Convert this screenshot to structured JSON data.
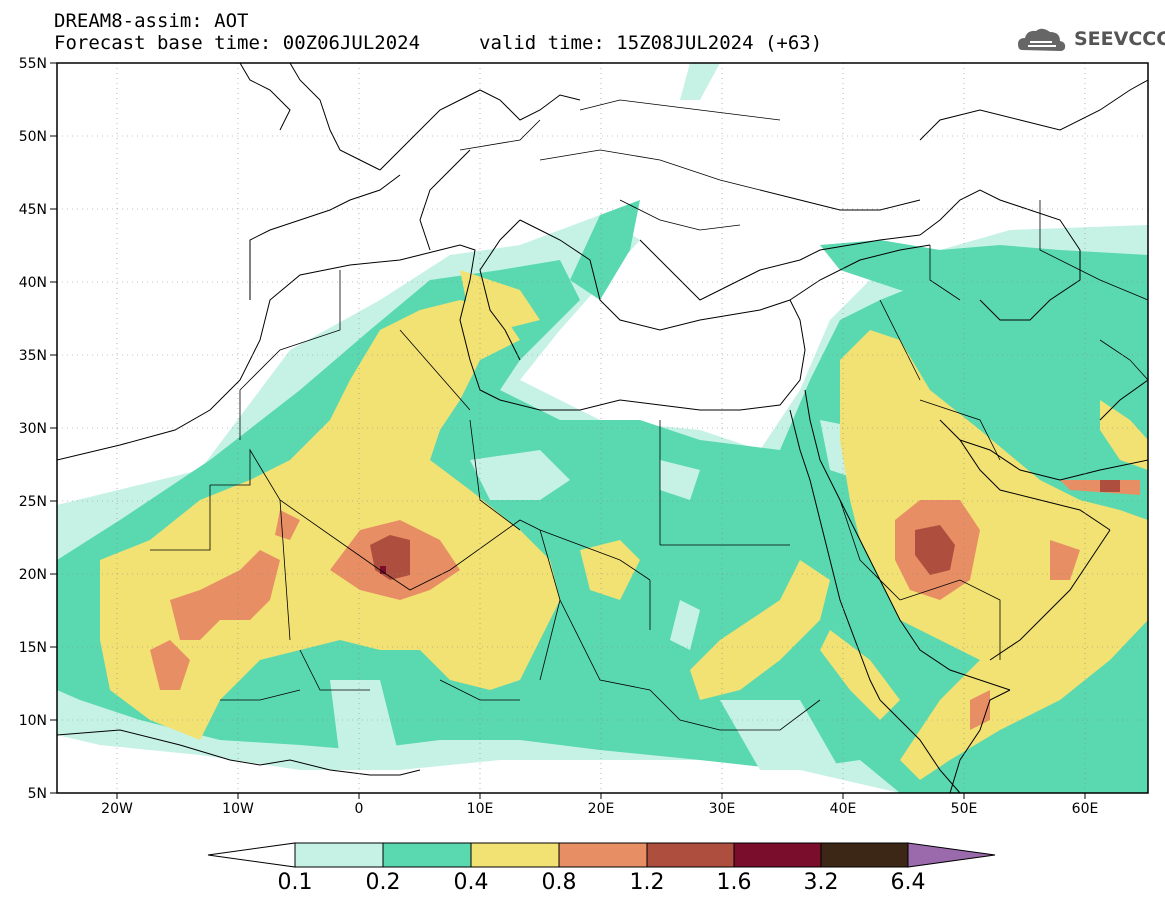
{
  "header": {
    "line1": "DREAM8-assim: AOT",
    "line2": "Forecast base time: 00Z06JUL2024",
    "valid": "valid time: 15Z08JUL2024 (+63)",
    "logo_text": "SEEVCCC"
  },
  "map": {
    "lat_labels": [
      "55N",
      "50N",
      "45N",
      "40N",
      "35N",
      "30N",
      "25N",
      "20N",
      "15N",
      "10N",
      "5N"
    ],
    "lon_labels": [
      "20W",
      "10W",
      "0",
      "10E",
      "20E",
      "30E",
      "40E",
      "50E",
      "60E"
    ],
    "region": "North Africa, Mediterranean and Middle East"
  },
  "colorbar": {
    "labels": [
      "0.1",
      "0.2",
      "0.4",
      "0.8",
      "1.2",
      "1.6",
      "3.2",
      "6.4"
    ],
    "colors": [
      "#ffffff",
      "#c6f2e6",
      "#5ad8b0",
      "#f2e274",
      "#e88e64",
      "#ae4e3e",
      "#7a0c2c",
      "#3c2616",
      "#9a6aac"
    ]
  },
  "colors": {
    "aot_0_1": "#c6f2e6",
    "aot_0_2": "#5ad8b0",
    "aot_0_4": "#f2e274",
    "aot_0_8": "#e88e64",
    "aot_1_2": "#ae4e3e",
    "aot_1_6": "#7a0c2c"
  }
}
